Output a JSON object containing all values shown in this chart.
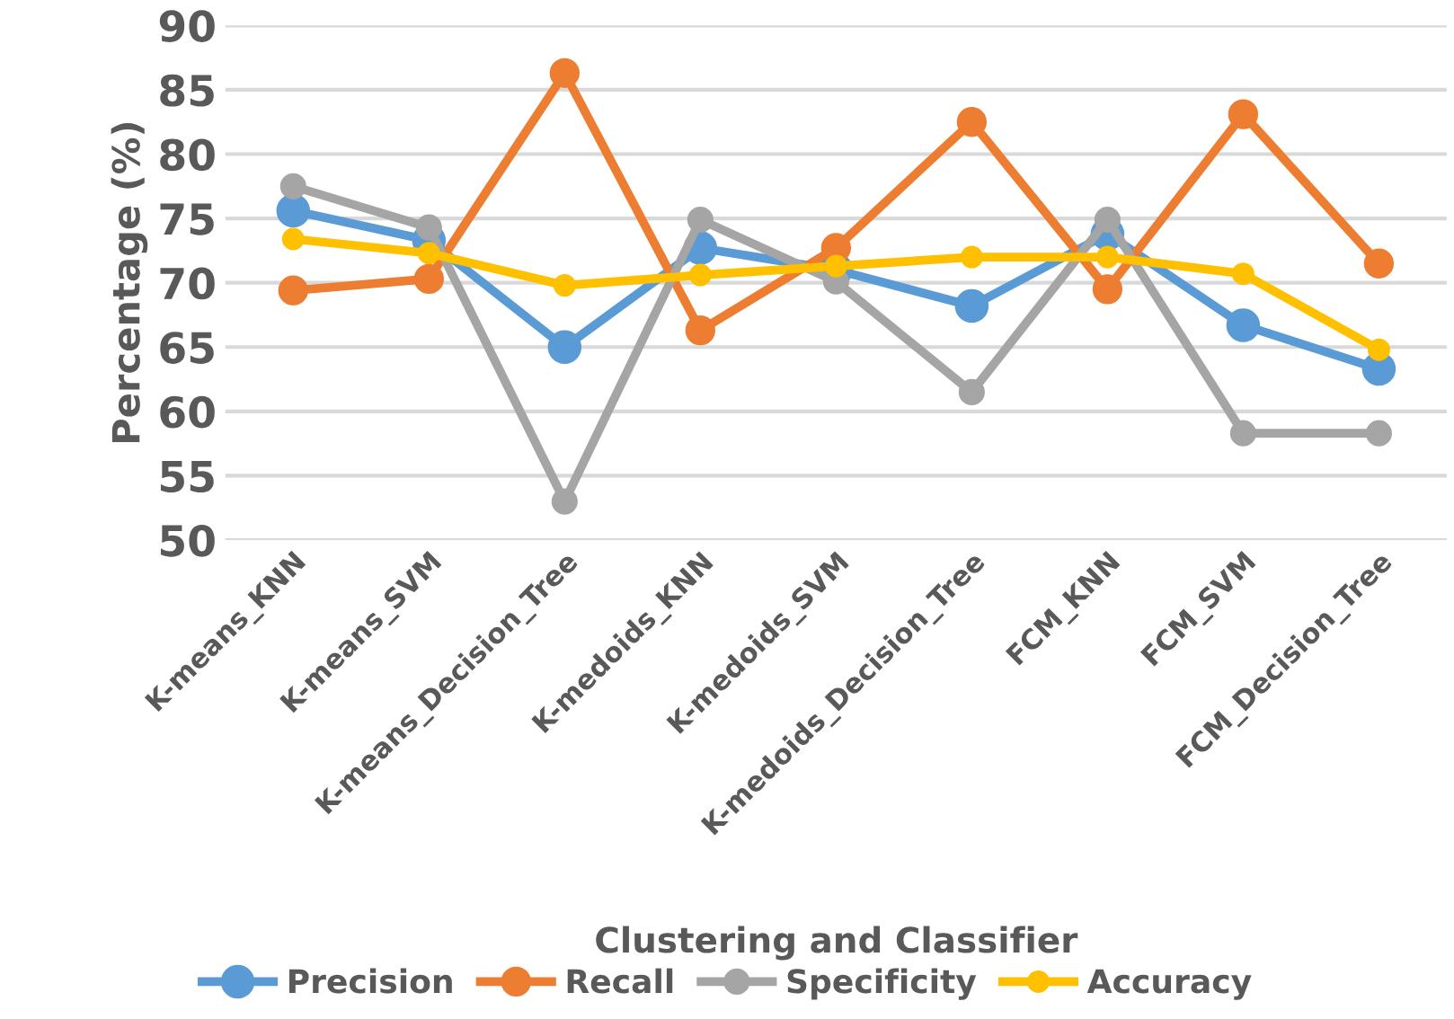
{
  "chart_data": {
    "type": "line",
    "xlabel": "Clustering and Classifier",
    "ylabel": "Percentage (%)",
    "categories": [
      "K-means_KNN",
      "K-means_SVM",
      "K-means_Decision_Tree",
      "K-medoids_KNN",
      "K-medoids_SVM",
      "K-medoids_Decision_Tree",
      "FCM_KNN",
      "FCM_SVM",
      "FCM_Decision_Tree"
    ],
    "series": [
      {
        "name": "Precision",
        "color": "#5b9bd5",
        "values": [
          75.6,
          73.3,
          65.0,
          72.7,
          71.0,
          68.2,
          73.8,
          66.7,
          63.3
        ]
      },
      {
        "name": "Recall",
        "color": "#ed7d31",
        "values": [
          69.4,
          70.3,
          86.3,
          66.3,
          72.7,
          82.5,
          69.5,
          83.1,
          71.5
        ]
      },
      {
        "name": "Specificity",
        "color": "#a5a5a5",
        "values": [
          77.5,
          74.3,
          53.0,
          74.9,
          70.1,
          61.5,
          74.9,
          58.3,
          58.3
        ]
      },
      {
        "name": "Accuracy",
        "color": "#ffc000",
        "values": [
          73.4,
          72.3,
          69.8,
          70.6,
          71.3,
          72.0,
          72.0,
          70.7,
          64.8
        ]
      }
    ],
    "ylim": [
      50,
      90
    ],
    "yticks": [
      50,
      55,
      60,
      65,
      70,
      75,
      80,
      85,
      90
    ],
    "grid": "y",
    "legend": "bottom",
    "marker": "circle",
    "line_style": "solid"
  }
}
